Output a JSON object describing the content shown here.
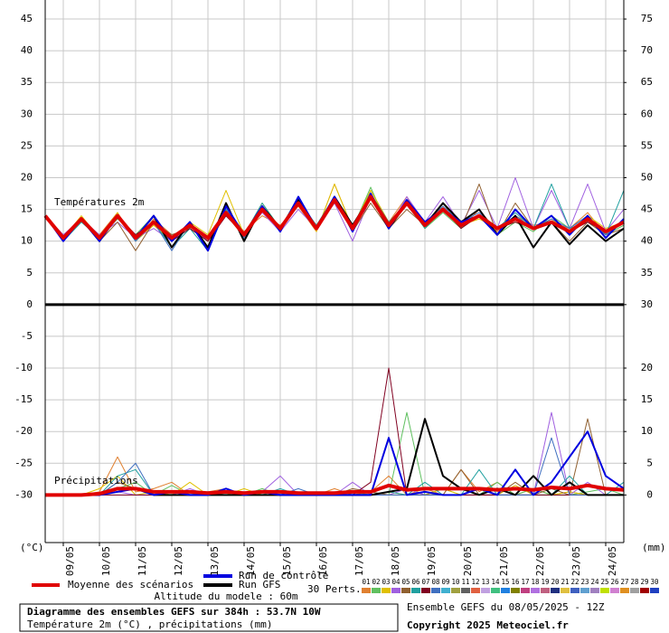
{
  "chart_data": {
    "type": "line",
    "title": "Diagramme des ensembles GEFS sur 384h : 53.7N 10W",
    "subtitle": "Température 2m (°C) , précipitations (mm)",
    "run_label": "Ensemble GEFS du 08/05/2025 - 12Z",
    "copyright": "Copyright 2025 Meteociel.fr",
    "altitude": "Altitude du modele : 60m",
    "panel_labels": [
      "Températures 2m",
      "Précipitations"
    ],
    "y_unit": "(°C)",
    "y2_unit": "(mm)",
    "grid": true,
    "xlim": [
      0,
      384
    ],
    "xticks": [
      {
        "value": 12,
        "label": "09/05"
      },
      {
        "value": 36,
        "label": "10/05"
      },
      {
        "value": 60,
        "label": "11/05"
      },
      {
        "value": 84,
        "label": "12/05"
      },
      {
        "value": 108,
        "label": "13/05"
      },
      {
        "value": 132,
        "label": "14/05"
      },
      {
        "value": 156,
        "label": "15/05"
      },
      {
        "value": 180,
        "label": "16/05"
      },
      {
        "value": 204,
        "label": "17/05"
      },
      {
        "value": 228,
        "label": "18/05"
      },
      {
        "value": 252,
        "label": "19/05"
      },
      {
        "value": 276,
        "label": "20/05"
      },
      {
        "value": 300,
        "label": "21/05"
      },
      {
        "value": 324,
        "label": "22/05"
      },
      {
        "value": 348,
        "label": "23/05"
      },
      {
        "value": 372,
        "label": "24/05"
      }
    ],
    "ylim": [
      -37.5,
      48
    ],
    "yticks": [
      -30,
      -25,
      -20,
      -15,
      -10,
      -5,
      0,
      5,
      10,
      15,
      20,
      25,
      30,
      35,
      40,
      45
    ],
    "y2lim": [
      -7.5,
      78
    ],
    "y2ticks": [
      0,
      5,
      10,
      15,
      20,
      30,
      35,
      40,
      45,
      50,
      55,
      60,
      65,
      70,
      75
    ],
    "x": [
      0,
      12,
      24,
      36,
      48,
      60,
      72,
      84,
      96,
      108,
      120,
      132,
      144,
      156,
      168,
      180,
      192,
      204,
      216,
      228,
      240,
      252,
      264,
      276,
      288,
      300,
      312,
      324,
      336,
      348,
      360,
      372,
      384
    ],
    "series": [
      {
        "name": "Moyenne des scénarios",
        "color": "#e00000",
        "values": [
          14,
          10.5,
          13.5,
          10.5,
          14,
          10.5,
          13,
          10.5,
          12.5,
          10.5,
          14.5,
          11,
          15,
          12,
          16,
          12,
          16.5,
          12,
          17,
          12.5,
          16,
          12.5,
          15,
          12.5,
          14,
          12,
          13.5,
          12,
          13,
          11.5,
          13.5,
          11.5,
          13
        ],
        "precip": [
          0,
          0,
          0,
          0.2,
          1,
          1,
          0.5,
          0.5,
          0.5,
          0.3,
          0.5,
          0.3,
          0.5,
          0.5,
          0.3,
          0.3,
          0.3,
          0.5,
          0.5,
          1.5,
          0.8,
          1,
          1,
          1,
          1,
          0.8,
          1,
          0.8,
          1.2,
          1,
          1.5,
          1,
          0.8
        ]
      },
      {
        "name": "Run de contrôle",
        "color": "#0000e0",
        "values": [
          14,
          10,
          13.5,
          10,
          14,
          10.5,
          14,
          10,
          13,
          8.5,
          15.5,
          11,
          15.5,
          11.5,
          17,
          12,
          17,
          11.5,
          17.5,
          12,
          16.5,
          13,
          15,
          13,
          14,
          11,
          15,
          12,
          14,
          11,
          14,
          10.5,
          13.5
        ],
        "precip": [
          0,
          0,
          0,
          0,
          0.5,
          1,
          0,
          0.5,
          0,
          0,
          1,
          0,
          0.5,
          0,
          0,
          0,
          0,
          0,
          0,
          9,
          0,
          0.5,
          0,
          0,
          1,
          0,
          4,
          0,
          2,
          6,
          10,
          3,
          1
        ]
      },
      {
        "name": "Run GFS",
        "color": "#000000",
        "values": [
          14,
          10.5,
          13.5,
          10,
          14,
          10.5,
          14,
          9,
          13,
          9,
          16,
          10,
          15.5,
          12,
          16.5,
          12,
          17,
          12.5,
          17,
          12,
          16,
          12.5,
          16,
          13,
          15,
          11,
          14,
          9,
          13,
          9.5,
          12.5,
          10,
          12
        ],
        "precip": [
          0,
          0,
          0,
          0,
          1,
          1,
          0,
          0,
          0,
          0,
          0,
          0,
          0,
          0,
          0,
          0,
          0,
          0,
          0,
          0.5,
          1,
          12,
          3,
          1,
          0,
          1,
          0,
          3,
          0,
          2,
          0,
          0,
          0
        ]
      }
    ],
    "perturbations_label": "30 Perts.",
    "perturbations": [
      {
        "name": "01",
        "color": "#e08030",
        "values": [
          14,
          11,
          13,
          11,
          14.5,
          10,
          13.5,
          11,
          12,
          10,
          15,
          11.5,
          14,
          12.5,
          15.5,
          11.5,
          19,
          12,
          18,
          13,
          17,
          12,
          15.5,
          12,
          15,
          11.5,
          14,
          12.5,
          13,
          12,
          14.5,
          11,
          13.5
        ],
        "precip": [
          0,
          0,
          0,
          0.5,
          6,
          0.5,
          1,
          2,
          0,
          0.5,
          1,
          0,
          0.5,
          0,
          0,
          0,
          1,
          0,
          0.5,
          3,
          0,
          1,
          0,
          4,
          0.5,
          2,
          0,
          1,
          0,
          0.5,
          0,
          0,
          0
        ]
      },
      {
        "name": "02",
        "color": "#60c060",
        "values": [
          14,
          10,
          13.5,
          10.5,
          13.5,
          11,
          14,
          9,
          12,
          10,
          14,
          11,
          15.5,
          12,
          16,
          12.5,
          16,
          12,
          18.5,
          12,
          16.5,
          12,
          14.5,
          12,
          14,
          11,
          13,
          11.5,
          14,
          12,
          13,
          11,
          12.5
        ],
        "precip": [
          0,
          0,
          0,
          0,
          1,
          2,
          0,
          1.5,
          0,
          0.5,
          0,
          0,
          1,
          0,
          0,
          0,
          0,
          0.5,
          0,
          0,
          13,
          0,
          1,
          0,
          0,
          2,
          0,
          1,
          0,
          0,
          0.5,
          1,
          0
        ]
      },
      {
        "name": "03",
        "color": "#e0c000",
        "values": [
          14,
          10.5,
          14,
          10.5,
          14.5,
          10,
          12.5,
          10,
          13,
          11,
          18,
          11,
          16,
          12,
          17,
          11.5,
          19,
          12,
          18,
          13,
          16,
          12,
          15,
          12.5,
          13.5,
          12,
          13,
          12,
          13.5,
          11.5,
          14,
          12,
          13
        ],
        "precip": [
          0,
          0,
          0,
          1,
          3,
          0,
          0.5,
          0,
          2,
          0,
          0,
          1,
          0,
          0,
          0,
          0.5,
          0,
          0,
          0,
          0.5,
          0,
          0,
          1,
          0,
          0,
          0,
          1.5,
          0,
          0,
          0.5,
          0,
          0,
          0
        ]
      },
      {
        "name": "04",
        "color": "#a060e0",
        "values": [
          14,
          11,
          13.5,
          11,
          13,
          10.5,
          12,
          10,
          12.5,
          10,
          14,
          11,
          14.5,
          11.5,
          15,
          12,
          16,
          10,
          17,
          12,
          17,
          13,
          17,
          12.5,
          18,
          12,
          20,
          12,
          18,
          12,
          19,
          11.5,
          15
        ],
        "precip": [
          0,
          0,
          0,
          0,
          0.5,
          0,
          0,
          0,
          1,
          0,
          0,
          0,
          0.5,
          3,
          0,
          0,
          0,
          2,
          0,
          0,
          1,
          0,
          0,
          0,
          0,
          0,
          0,
          0,
          13,
          0,
          2,
          0,
          0
        ]
      },
      {
        "name": "05",
        "color": "#906030",
        "values": [
          14,
          10.5,
          13.5,
          10,
          13,
          8.5,
          13,
          11,
          12,
          10,
          15,
          10.5,
          15,
          12,
          16,
          12,
          16.5,
          11.5,
          16,
          12,
          15,
          12.5,
          16,
          12,
          19,
          11,
          16,
          12,
          13,
          10,
          13,
          11,
          12
        ],
        "precip": [
          0,
          0,
          0,
          0,
          2,
          1,
          0,
          0,
          0,
          0,
          0,
          0,
          0,
          0,
          0,
          0,
          0,
          1,
          0.5,
          0,
          0,
          0,
          0,
          4,
          0,
          0,
          2,
          0,
          1,
          0,
          12,
          0,
          0
        ]
      },
      {
        "name": "06",
        "color": "#20a0a0",
        "values": [
          14,
          10,
          13,
          10.5,
          14,
          10,
          13,
          9,
          12,
          8.5,
          15,
          11,
          16,
          12,
          16.5,
          12.5,
          17,
          12,
          17.5,
          13,
          16,
          12,
          15,
          13,
          14,
          12,
          14.5,
          12,
          19,
          12,
          14,
          11,
          18
        ],
        "precip": [
          0,
          0,
          0,
          0,
          3,
          4,
          0,
          0,
          0,
          0,
          0,
          0,
          0,
          1,
          0,
          0,
          0,
          0,
          0,
          0.5,
          0,
          2,
          0,
          0,
          4,
          0,
          0,
          0,
          0,
          3,
          0,
          0,
          2
        ]
      },
      {
        "name": "07",
        "color": "#800020",
        "values": [
          14,
          10.5,
          13.5,
          10.5,
          14,
          11,
          13,
          10,
          12,
          10,
          14,
          11,
          15,
          12,
          16,
          12,
          16.5,
          12,
          17,
          12,
          16,
          12.5,
          15,
          12,
          14,
          12,
          13,
          12,
          13,
          11.5,
          13,
          11.5,
          13
        ],
        "precip": [
          0,
          0,
          0,
          0,
          0,
          0,
          0,
          0,
          0,
          0,
          0,
          0,
          0,
          0,
          0,
          0,
          0,
          0,
          2,
          20,
          0,
          0,
          0,
          0,
          0,
          0,
          0,
          0,
          0,
          0,
          0,
          0,
          0
        ]
      },
      {
        "name": "08",
        "color": "#4070c0",
        "values": [
          14,
          10,
          13.5,
          10,
          14,
          10,
          13,
          8.5,
          13,
          9,
          15.5,
          10.5,
          15,
          12,
          17,
          12,
          17,
          12.5,
          17,
          12,
          16,
          13,
          15.5,
          13,
          14.5,
          12,
          14,
          12,
          13.5,
          12,
          14,
          11,
          13
        ],
        "precip": [
          0,
          0,
          0,
          0,
          2,
          5,
          0,
          0,
          0,
          0,
          0,
          0,
          0,
          0,
          1,
          0,
          0,
          0,
          0,
          0,
          0,
          0,
          0,
          0,
          1,
          0,
          0,
          0,
          9,
          0,
          0,
          0,
          0
        ]
      },
      {
        "name": "09",
        "color": "#40b0d0"
      },
      {
        "name": "10",
        "color": "#a0a040"
      },
      {
        "name": "11",
        "color": "#606060"
      },
      {
        "name": "12",
        "color": "#e06040"
      },
      {
        "name": "13",
        "color": "#c0a0e0"
      },
      {
        "name": "14",
        "color": "#40c080"
      },
      {
        "name": "15",
        "color": "#2080e0"
      },
      {
        "name": "16",
        "color": "#808000"
      },
      {
        "name": "17",
        "color": "#c04080"
      },
      {
        "name": "18",
        "color": "#b070e0"
      },
      {
        "name": "19",
        "color": "#c06080"
      },
      {
        "name": "20",
        "color": "#203080"
      },
      {
        "name": "21",
        "color": "#e0c040"
      },
      {
        "name": "22",
        "color": "#4060c0"
      },
      {
        "name": "23",
        "color": "#60a0d0"
      },
      {
        "name": "24",
        "color": "#a080c0"
      },
      {
        "name": "25",
        "color": "#c0e000"
      },
      {
        "name": "26",
        "color": "#d080d0"
      },
      {
        "name": "27",
        "color": "#e09020"
      },
      {
        "name": "28",
        "color": "#a0a0a0"
      },
      {
        "name": "29",
        "color": "#a00000"
      },
      {
        "name": "30",
        "color": "#2040c0"
      }
    ]
  }
}
